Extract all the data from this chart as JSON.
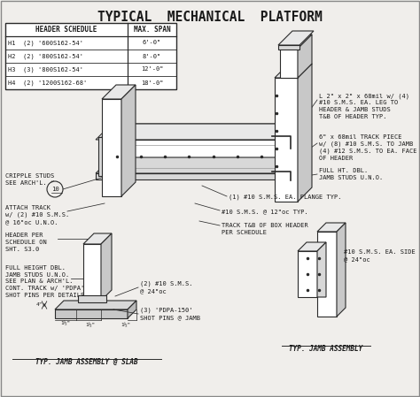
{
  "title": "TYPICAL  MECHANICAL  PLATFORM",
  "bg_color": "#f0eeeb",
  "table": {
    "col1_header": "HEADER SCHEDULE",
    "col2_header": "MAX. SPAN",
    "rows": [
      [
        "H1  (2) '600S162-54'",
        "6'-0\""
      ],
      [
        "H2  (2) '800S162-54'",
        "8'-0\""
      ],
      [
        "H3  (3) '800S162-54'",
        "12'-0\""
      ],
      [
        "H4  (2) '1200S162-68'",
        "18'-0\""
      ]
    ]
  },
  "line_color": "#2a2a2a",
  "text_color": "#1a1a1a",
  "gray1": "#e8e8e8",
  "gray2": "#d8d8d8",
  "gray3": "#c8c8c8",
  "gray4": "#bbbbbb"
}
